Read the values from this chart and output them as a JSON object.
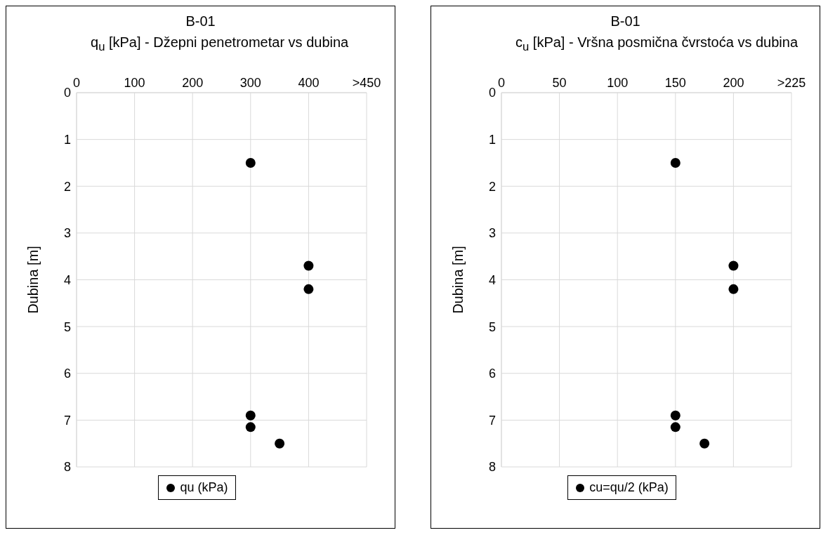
{
  "chart_data": [
    {
      "type": "scatter",
      "title": "B-01",
      "subtitle": "q$_{u}$ [kPa] - Džepni penetrometar vs dubina",
      "ylabel": "Dubina [m]",
      "xlim": [
        0,
        500
      ],
      "xticks": [
        0,
        100,
        200,
        300,
        400,
        {
          "value": 500,
          "label": ">450"
        }
      ],
      "ylim": [
        8,
        0
      ],
      "yticks": [
        0,
        1,
        2,
        3,
        4,
        5,
        6,
        7,
        8
      ],
      "grid": true,
      "legend": "bottom",
      "marker": "circle",
      "series": [
        {
          "name": "qu (kPa)",
          "color": "#000000",
          "x": [
            300,
            400,
            400,
            300,
            300,
            350
          ],
          "values": [
            1.5,
            3.7,
            4.2,
            6.9,
            7.15,
            7.5
          ]
        }
      ]
    },
    {
      "type": "scatter",
      "title": "B-01",
      "subtitle": "c$_{u}$ [kPa] - Vršna posmična čvrstoća vs dubina",
      "ylabel": "Dubina [m]",
      "xlim": [
        0,
        250
      ],
      "xticks": [
        0,
        50,
        100,
        150,
        200,
        {
          "value": 250,
          "label": ">225"
        }
      ],
      "ylim": [
        8,
        0
      ],
      "yticks": [
        0,
        1,
        2,
        3,
        4,
        5,
        6,
        7,
        8
      ],
      "grid": true,
      "legend": "bottom",
      "marker": "circle",
      "series": [
        {
          "name": "cu=qu/2 (kPa)",
          "color": "#000000",
          "x": [
            150,
            200,
            200,
            150,
            150,
            175
          ],
          "values": [
            1.5,
            3.7,
            4.2,
            6.9,
            7.15,
            7.5
          ]
        }
      ]
    }
  ]
}
